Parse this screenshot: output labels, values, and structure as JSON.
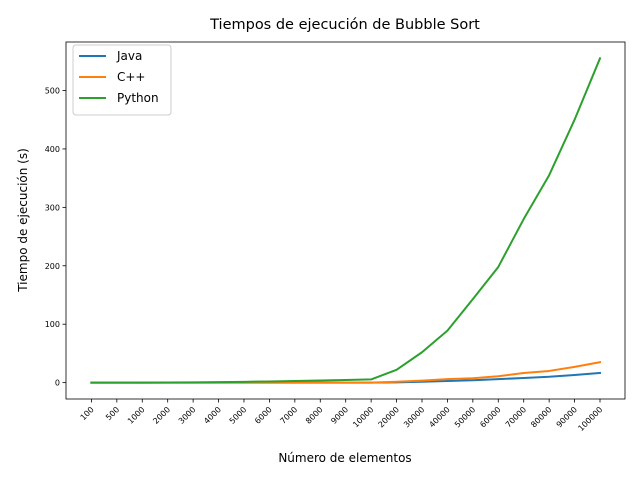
{
  "chart_data": {
    "type": "line",
    "title": "Tiempos de ejecución de Bubble Sort",
    "xlabel": "Número de elementos",
    "ylabel": "Tiempo de ejecución (s)",
    "categories": [
      "100",
      "500",
      "1000",
      "2000",
      "3000",
      "4000",
      "5000",
      "6000",
      "7000",
      "8000",
      "9000",
      "10000",
      "20000",
      "30000",
      "40000",
      "50000",
      "60000",
      "70000",
      "80000",
      "90000",
      "100000"
    ],
    "ylim": [
      -28,
      583
    ],
    "yticks": [
      0,
      100,
      200,
      300,
      400,
      500
    ],
    "grid": false,
    "legend_position": "top-left",
    "series": [
      {
        "name": "Java",
        "color": "#1f77b4",
        "values": [
          0,
          0,
          0,
          0,
          0,
          0,
          0,
          0,
          0,
          0,
          0,
          0,
          0.5,
          1.5,
          2.8,
          4.2,
          6,
          8,
          10,
          13,
          16.5
        ]
      },
      {
        "name": "C++",
        "color": "#ff7f0e",
        "values": [
          0,
          0,
          0,
          0,
          0,
          0,
          0,
          0,
          0,
          0,
          0,
          0,
          1.5,
          3.5,
          6,
          7.5,
          11,
          16.5,
          20,
          27,
          35
        ]
      },
      {
        "name": "Python",
        "color": "#2ca02c",
        "values": [
          0,
          0,
          0,
          0.2,
          0.5,
          0.9,
          1.4,
          2,
          2.8,
          3.6,
          4.5,
          5.5,
          22,
          52,
          89,
          143,
          198,
          280,
          355,
          450,
          555
        ]
      }
    ]
  }
}
